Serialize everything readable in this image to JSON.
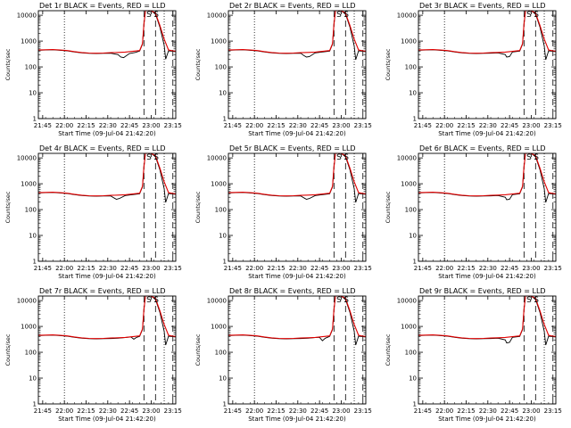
{
  "colors": {
    "events": "#000000",
    "lld": "#e00000",
    "background": "#ffffff"
  },
  "chart_data": {
    "type": "line",
    "yscale": "log",
    "ylim": [
      1,
      15000
    ],
    "yticks": [
      "1",
      "10",
      "100",
      "1000",
      "10000"
    ],
    "xlim": [
      0,
      95
    ],
    "xticks": [
      "21:45",
      "22:00",
      "22:15",
      "22:30",
      "22:45",
      "23:00",
      "23:15"
    ],
    "xtick_minutes": [
      3,
      18,
      33,
      48,
      63,
      78,
      93
    ],
    "xlabel": "Start Time (09-Jul-04 21:42:20)",
    "ylabel": "Counts/sec",
    "dotted_lines_min": [
      18,
      87
    ],
    "dashed_lines_min": [
      73,
      81,
      93
    ],
    "annotations": [
      {
        "text": "S",
        "x": 76.5
      },
      {
        "text": "S",
        "x": 81.5
      }
    ],
    "lld_series": {
      "name": "LLD",
      "t": [
        0,
        5,
        10,
        15,
        20,
        25,
        30,
        35,
        40,
        45,
        50,
        55,
        60,
        65,
        70,
        72,
        73,
        74,
        78,
        81,
        84,
        87,
        90,
        93,
        95
      ],
      "y": [
        450,
        460,
        470,
        450,
        430,
        390,
        360,
        345,
        340,
        345,
        355,
        365,
        375,
        400,
        430,
        800,
        4500,
        15000,
        15000,
        12000,
        4000,
        1200,
        450,
        420,
        410
      ]
    },
    "panels": [
      {
        "title": "Det 1r BLACK = Events, RED = LLD",
        "events": {
          "t": [
            0,
            5,
            10,
            15,
            20,
            25,
            30,
            35,
            40,
            45,
            50,
            55,
            57,
            59,
            63,
            67,
            70,
            72,
            73,
            74,
            78,
            81,
            84,
            87,
            88,
            90,
            93,
            95
          ],
          "y": [
            440,
            450,
            460,
            440,
            420,
            380,
            350,
            335,
            330,
            335,
            340,
            300,
            240,
            230,
            330,
            365,
            410,
            750,
            4300,
            15000,
            15000,
            11000,
            3500,
            700,
            200,
            420,
            400,
            390
          ]
        }
      },
      {
        "title": "Det 2r BLACK = Events, RED = LLD",
        "events": {
          "t": [
            0,
            5,
            10,
            15,
            20,
            25,
            30,
            35,
            40,
            45,
            50,
            52,
            54,
            56,
            60,
            65,
            70,
            72,
            73,
            74,
            78,
            81,
            84,
            87,
            88,
            90,
            93,
            95
          ],
          "y": [
            440,
            450,
            460,
            440,
            420,
            380,
            350,
            335,
            330,
            335,
            340,
            280,
            240,
            250,
            350,
            380,
            410,
            750,
            4300,
            15000,
            15000,
            11000,
            3500,
            650,
            190,
            420,
            400,
            390
          ]
        }
      },
      {
        "title": "Det 3r BLACK = Events, RED = LLD",
        "events": {
          "t": [
            0,
            5,
            10,
            15,
            20,
            25,
            30,
            35,
            40,
            45,
            50,
            55,
            60,
            61,
            63,
            65,
            70,
            72,
            73,
            74,
            78,
            81,
            84,
            87,
            88,
            90,
            93,
            95
          ],
          "y": [
            440,
            450,
            460,
            440,
            420,
            380,
            350,
            335,
            330,
            335,
            340,
            350,
            300,
            240,
            250,
            380,
            410,
            750,
            4300,
            15000,
            15000,
            11000,
            3500,
            650,
            190,
            420,
            400,
            390
          ]
        }
      },
      {
        "title": "Det 4r BLACK = Events, RED = LLD",
        "events": {
          "t": [
            0,
            5,
            10,
            15,
            20,
            25,
            30,
            35,
            40,
            45,
            50,
            52,
            54,
            56,
            60,
            65,
            70,
            72,
            73,
            74,
            78,
            81,
            84,
            87,
            88,
            90,
            93,
            95
          ],
          "y": [
            440,
            450,
            460,
            440,
            420,
            380,
            350,
            335,
            330,
            335,
            340,
            290,
            250,
            270,
            350,
            380,
            410,
            750,
            4300,
            15000,
            15000,
            11000,
            3500,
            650,
            190,
            420,
            400,
            390
          ]
        }
      },
      {
        "title": "Det 5r BLACK = Events, RED = LLD",
        "events": {
          "t": [
            0,
            5,
            10,
            15,
            20,
            25,
            30,
            35,
            40,
            45,
            50,
            52,
            54,
            56,
            60,
            65,
            70,
            72,
            73,
            74,
            78,
            81,
            84,
            87,
            88,
            90,
            93,
            95
          ],
          "y": [
            440,
            450,
            460,
            440,
            420,
            380,
            350,
            335,
            330,
            335,
            340,
            290,
            250,
            270,
            350,
            380,
            410,
            750,
            4300,
            15000,
            15000,
            11000,
            3500,
            650,
            190,
            420,
            400,
            390
          ]
        }
      },
      {
        "title": "Det 6r BLACK = Events, RED = LLD",
        "events": {
          "t": [
            0,
            5,
            10,
            15,
            20,
            25,
            30,
            35,
            40,
            45,
            50,
            55,
            60,
            61,
            63,
            65,
            70,
            72,
            73,
            74,
            78,
            81,
            84,
            87,
            88,
            90,
            93,
            95
          ],
          "y": [
            440,
            450,
            460,
            440,
            420,
            380,
            350,
            335,
            330,
            335,
            340,
            350,
            300,
            240,
            250,
            380,
            410,
            750,
            4300,
            15000,
            15000,
            11000,
            3500,
            650,
            190,
            420,
            400,
            390
          ]
        }
      },
      {
        "title": "Det 7r BLACK = Events, RED = LLD",
        "events": {
          "t": [
            0,
            5,
            10,
            15,
            20,
            25,
            30,
            35,
            40,
            45,
            50,
            55,
            60,
            64,
            66,
            68,
            70,
            72,
            73,
            74,
            78,
            81,
            84,
            87,
            88,
            90,
            93,
            95
          ],
          "y": [
            440,
            450,
            460,
            440,
            420,
            380,
            350,
            335,
            330,
            335,
            340,
            350,
            370,
            390,
            320,
            380,
            410,
            750,
            4300,
            15000,
            15000,
            11000,
            3500,
            650,
            190,
            420,
            400,
            390
          ]
        }
      },
      {
        "title": "Det 8r BLACK = Events, RED = LLD",
        "events": {
          "t": [
            0,
            5,
            10,
            15,
            20,
            25,
            30,
            35,
            40,
            45,
            50,
            55,
            60,
            63,
            65,
            67,
            70,
            72,
            73,
            74,
            78,
            81,
            84,
            87,
            88,
            90,
            93,
            95
          ],
          "y": [
            440,
            450,
            460,
            440,
            420,
            380,
            350,
            335,
            330,
            335,
            340,
            350,
            370,
            380,
            280,
            350,
            410,
            750,
            4300,
            15000,
            15000,
            11000,
            3500,
            650,
            190,
            420,
            400,
            390
          ]
        }
      },
      {
        "title": "Det 9r BLACK = Events, RED = LLD",
        "events": {
          "t": [
            0,
            5,
            10,
            15,
            20,
            25,
            30,
            35,
            40,
            45,
            50,
            55,
            60,
            61,
            63,
            65,
            70,
            72,
            73,
            74,
            78,
            81,
            84,
            87,
            88,
            90,
            93,
            95
          ],
          "y": [
            440,
            450,
            460,
            440,
            420,
            380,
            350,
            335,
            330,
            335,
            340,
            350,
            300,
            230,
            240,
            380,
            410,
            750,
            4300,
            15000,
            15000,
            11000,
            3500,
            650,
            190,
            420,
            400,
            390
          ]
        }
      }
    ]
  }
}
